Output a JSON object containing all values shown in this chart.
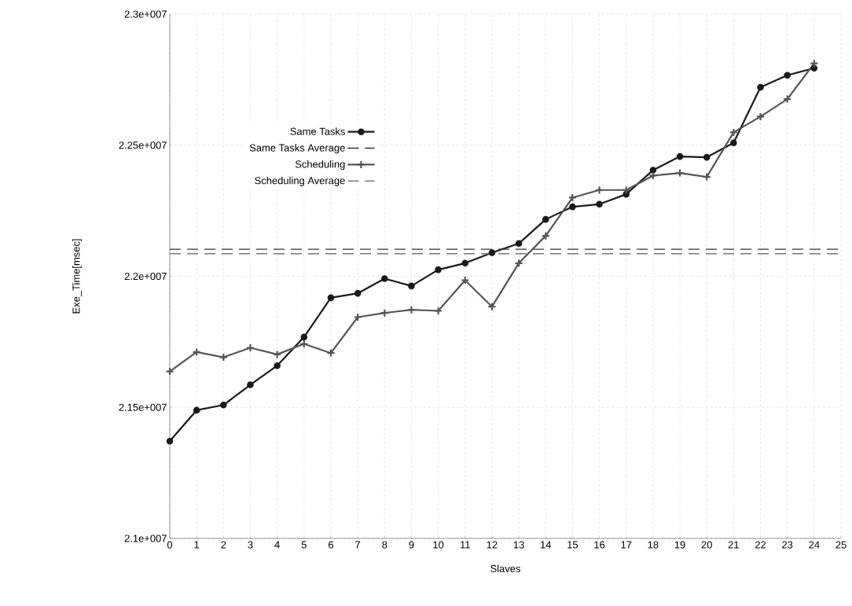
{
  "chart_data": {
    "type": "line",
    "xlabel": "Slaves",
    "ylabel": "Exe_Time[msec]",
    "xlim": [
      0,
      25
    ],
    "xticks": [
      0,
      1,
      2,
      3,
      4,
      5,
      6,
      7,
      8,
      9,
      10,
      11,
      12,
      13,
      14,
      15,
      16,
      17,
      18,
      19,
      20,
      21,
      22,
      23,
      24,
      25
    ],
    "ylim": [
      21000000,
      23000000
    ],
    "yticks": [
      {
        "value": 21000000,
        "label": "2.1e+007"
      },
      {
        "value": 21500000,
        "label": "2.15e+007"
      },
      {
        "value": 22000000,
        "label": "2.2e+007"
      },
      {
        "value": 22500000,
        "label": "2.25e+007"
      },
      {
        "value": 23000000,
        "label": "2.3e+007"
      }
    ],
    "grid": true,
    "legend": "top left",
    "x": [
      0,
      1,
      2,
      3,
      4,
      5,
      6,
      7,
      8,
      9,
      10,
      11,
      12,
      13,
      14,
      15,
      16,
      17,
      18,
      19,
      20,
      21,
      22,
      23,
      24
    ],
    "series": [
      {
        "name": "Same Tasks",
        "color": "#1a1a1a",
        "marker": "circle",
        "line_style": "solid",
        "values": [
          21371000,
          21489000,
          21509000,
          21586000,
          21659000,
          21768000,
          21918000,
          21935000,
          21991000,
          21963000,
          22025000,
          22050000,
          22090000,
          22125000,
          22217000,
          22265000,
          22275000,
          22313000,
          22405000,
          22457000,
          22454000,
          22509000,
          22721000,
          22767000,
          22794000
        ]
      },
      {
        "name": "Scheduling",
        "color": "#555555",
        "marker": "cross",
        "line_style": "solid",
        "values": [
          21637000,
          21711000,
          21691000,
          21727000,
          21702000,
          21742000,
          21707000,
          21844000,
          21860000,
          21872000,
          21868000,
          21985000,
          21884000,
          22050000,
          22154000,
          22300000,
          22329000,
          22329000,
          22384000,
          22394000,
          22379000,
          22549000,
          22609000,
          22676000,
          22812000
        ]
      }
    ],
    "ref_lines": [
      {
        "axis": "y",
        "value": 22103000,
        "label": "Same Tasks Average",
        "color": "#333333",
        "line_style": "dashed"
      },
      {
        "axis": "y",
        "value": 22086000,
        "label": "Scheduling Average",
        "color": "#777777",
        "line_style": "dashed"
      }
    ]
  }
}
